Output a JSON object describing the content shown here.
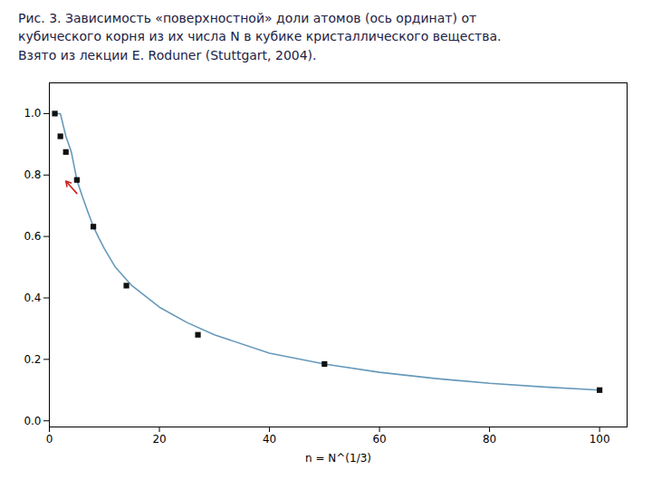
{
  "chart_data": {
    "type": "line",
    "title": "Рис. 3. Зависимость «поверхностной» доли атомов (ось ординат) от\nкубического корня из их числа N в кубике кристаллического вещества.\nВзято из лекции  E. Roduner (Stuttgart, 2004).",
    "x_label": "n = N^(1/3)",
    "series": [
      {
        "type": "line",
        "color": "#6699bb",
        "x": [
          1,
          2,
          3,
          4,
          5,
          6,
          7,
          8,
          9,
          10,
          12,
          15,
          20,
          25,
          30,
          40,
          50,
          60,
          70,
          80,
          90,
          100
        ],
        "values": [
          1.0,
          1.0,
          0.926,
          0.875,
          0.784,
          0.73,
          0.68,
          0.632,
          0.595,
          0.56,
          0.5,
          0.44,
          0.37,
          0.32,
          0.28,
          0.22,
          0.185,
          0.158,
          0.138,
          0.122,
          0.11,
          0.1
        ]
      },
      {
        "type": "scatter",
        "color": "#111111",
        "marker": "square",
        "x": [
          1,
          2,
          3,
          5,
          8,
          14,
          27,
          50,
          100
        ],
        "values": [
          1.0,
          0.926,
          0.875,
          0.784,
          0.632,
          0.44,
          0.28,
          0.185,
          0.1
        ]
      }
    ],
    "annotations": [
      {
        "type": "arrow",
        "x1": 5,
        "y1": 0.74,
        "x2": 3,
        "y2": 0.78,
        "color": "#cc2222"
      }
    ],
    "xlim": [
      0,
      105
    ],
    "ylim": [
      -0.02,
      1.1
    ],
    "xticks": [
      0,
      20,
      40,
      60,
      80,
      100
    ],
    "yticks": [
      0.0,
      0.2,
      0.4,
      0.6,
      0.8,
      1.0
    ],
    "grid": false
  }
}
